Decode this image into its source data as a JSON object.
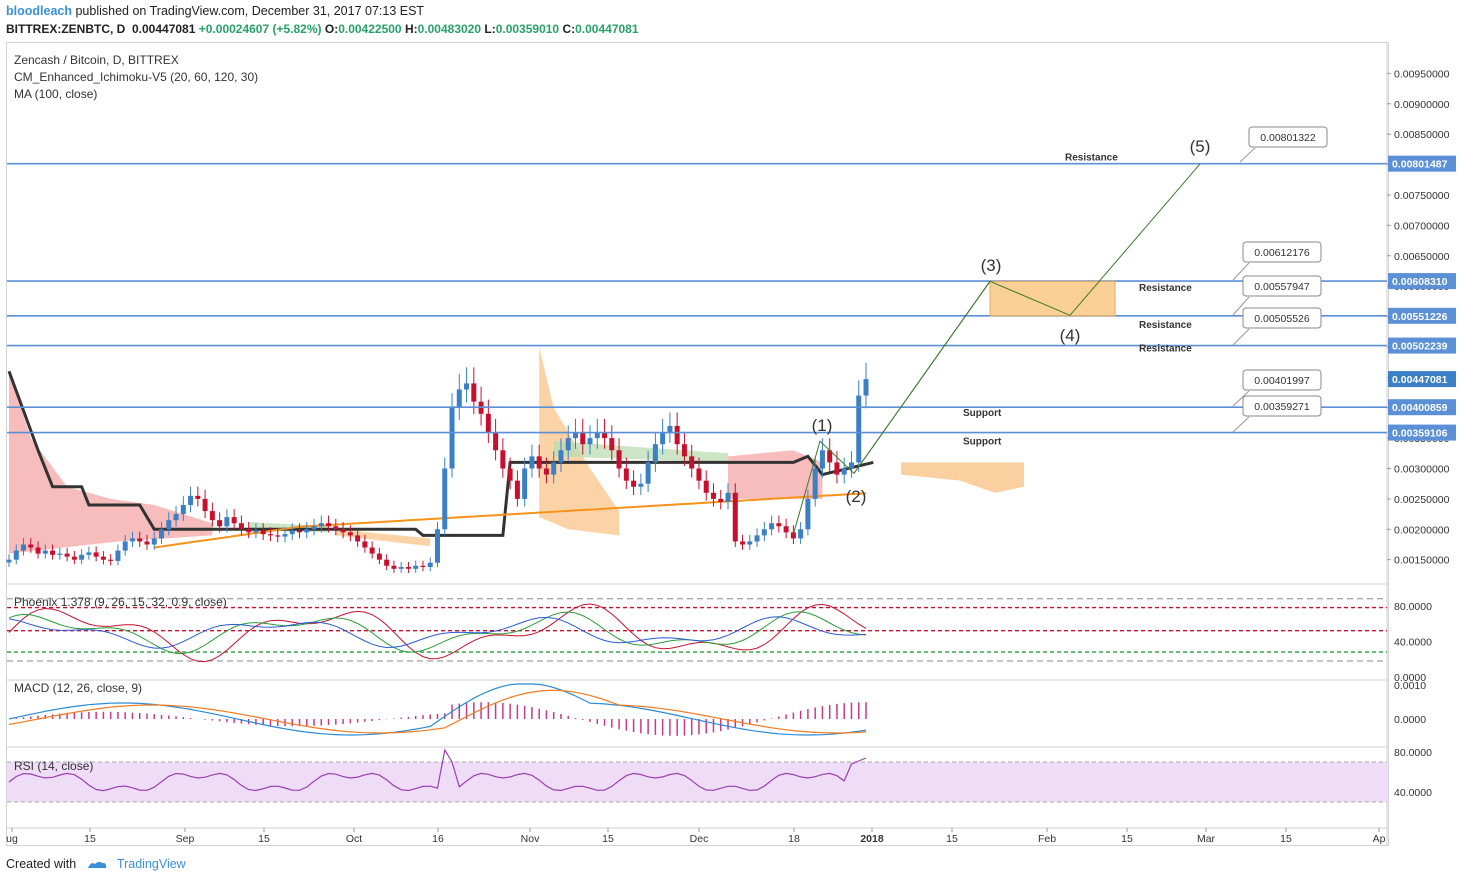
{
  "header": {
    "author": "bloodleach",
    "published": "published on TradingView.com, December 31, 2017 07:13 EST",
    "symbol": "BITTREX:ZENBTC, D",
    "last": "0.00447081",
    "change": "+0.00024607 (+5.82%)",
    "o_label": "O:",
    "o": "0.00422500",
    "h_label": "H:",
    "h": "0.00483020",
    "l_label": "L:",
    "l": "0.00359010",
    "c_label": "C:",
    "c": "0.00447081"
  },
  "legend": {
    "line1": "Zencash / Bitcoin, D, BITTREX",
    "line2": "CM_Enhanced_Ichimoku-V5 (20, 60, 120, 30)",
    "line3": "MA (100, close)",
    "phoenix": "Phoenix 1.378 (9, 26, 15, 32, 0.9, close)",
    "macd": "MACD (12, 26, close, 9)",
    "rsi": "RSI (14, close)"
  },
  "footer": {
    "created": "Created with",
    "brand": "TradingView"
  },
  "colors": {
    "up": "#3b7fc4",
    "down": "#c8102e",
    "kijun": "#333333",
    "ma": "#f7931a",
    "cloud_bear": "#f4a6a6",
    "cloud_bull": "#b9dcb2",
    "cloud_future": "#f9c48a",
    "level": "#5b8fd6",
    "annot": "#3a7a2a",
    "rsi_band": "#efdcf7",
    "rsi_line": "#9b3fb0",
    "macd_line": "#2a8bd6",
    "signal_line": "#f47b20",
    "hist": "#c23b8c"
  },
  "chart_data": [
    {
      "type": "candlestick",
      "title": "Zencash / Bitcoin, D, BITTREX",
      "y_range": [
        0.0011,
        0.01
      ],
      "y_ticks": [
        "0.00950000",
        "0.00900000",
        "0.00850000",
        "0.00800000",
        "0.00750000",
        "0.00700000",
        "0.00650000",
        "0.00600000",
        "0.00550000",
        "0.00500000",
        "0.00450000",
        "0.00400000",
        "0.00350000",
        "0.00300000",
        "0.00250000",
        "0.00200000",
        "0.00150000"
      ],
      "x_ticks": [
        "ug",
        "15",
        "Sep",
        "15",
        "Oct",
        "16",
        "Nov",
        "15",
        "Dec",
        "18",
        "2018",
        "15",
        "Feb",
        "15",
        "Mar",
        "15",
        "Ap"
      ],
      "price_labels": [
        {
          "value": 0.00801487,
          "text": "0.00801487"
        },
        {
          "value": 0.0060831,
          "text": "0.00608310"
        },
        {
          "value": 0.00551226,
          "text": "0.00551226"
        },
        {
          "value": 0.00502239,
          "text": "0.00502239"
        },
        {
          "value": 0.00447081,
          "text": "0.00447081",
          "current": true
        },
        {
          "value": 0.00400859,
          "text": "0.00400859"
        },
        {
          "value": 0.00359106,
          "text": "0.00359106"
        }
      ],
      "levels": [
        {
          "value": 0.00801487,
          "label": "Resistance"
        },
        {
          "value": 0.0060831,
          "label": "Resistance"
        },
        {
          "value": 0.00551226,
          "label": "Resistance"
        },
        {
          "value": 0.00502239,
          "label": "Resistance"
        },
        {
          "value": 0.00400859,
          "label": "Support"
        },
        {
          "value": 0.00359106,
          "label": "Support"
        }
      ],
      "callouts": [
        "0.00801322",
        "0.00612176",
        "0.00557947",
        "0.00505526",
        "0.00401997",
        "0.00359271"
      ],
      "waves": [
        "(1)",
        "(2)",
        "(3)",
        "(4)",
        "(5)"
      ],
      "wave_points": [
        0.00345,
        0.00292,
        0.00608,
        0.00552,
        0.00801
      ],
      "close_series": [
        0.0015,
        0.00165,
        0.00175,
        0.0017,
        0.0016,
        0.00165,
        0.00158,
        0.0016,
        0.00155,
        0.0015,
        0.00158,
        0.00162,
        0.00155,
        0.0015,
        0.00148,
        0.00165,
        0.0018,
        0.00185,
        0.0018,
        0.00175,
        0.00185,
        0.002,
        0.00215,
        0.00225,
        0.0024,
        0.00255,
        0.0025,
        0.0023,
        0.00215,
        0.00205,
        0.0022,
        0.0021,
        0.002,
        0.00195,
        0.00198,
        0.00192,
        0.0019,
        0.00188,
        0.00192,
        0.00198,
        0.00195,
        0.002,
        0.00205,
        0.0021,
        0.00205,
        0.002,
        0.00195,
        0.0019,
        0.0018,
        0.0017,
        0.0016,
        0.0015,
        0.0014,
        0.00135,
        0.00138,
        0.00135,
        0.0014,
        0.00138,
        0.00145,
        0.002,
        0.003,
        0.004,
        0.0043,
        0.0044,
        0.0041,
        0.0039,
        0.0036,
        0.0033,
        0.003,
        0.0028,
        0.0025,
        0.003,
        0.0032,
        0.003,
        0.0029,
        0.0031,
        0.0033,
        0.0035,
        0.0036,
        0.0034,
        0.0035,
        0.0036,
        0.0035,
        0.0033,
        0.003,
        0.0028,
        0.0027,
        0.00275,
        0.0031,
        0.0034,
        0.0036,
        0.0037,
        0.0034,
        0.0032,
        0.003,
        0.0028,
        0.0026,
        0.0025,
        0.00245,
        0.0026,
        0.0018,
        0.00175,
        0.0018,
        0.0019,
        0.002,
        0.0021,
        0.00205,
        0.00195,
        0.00185,
        0.002,
        0.0025,
        0.003,
        0.0033,
        0.0031,
        0.0029,
        0.003,
        0.0031,
        0.0042,
        0.00447
      ]
    },
    {
      "type": "line",
      "title": "Phoenix 1.378 (9, 26, 15, 32, 0.9, close)",
      "y_ticks": [
        "80.0000",
        "40.0000",
        "0.0000"
      ],
      "y_range": [
        0,
        100
      ]
    },
    {
      "type": "line",
      "title": "MACD (12, 26, close, 9)",
      "y_ticks": [
        "0.0010",
        "0.0000"
      ]
    },
    {
      "type": "line",
      "title": "RSI (14, close)",
      "y_ticks": [
        "80.0000",
        "40.0000"
      ],
      "y_range": [
        0,
        100
      ]
    }
  ]
}
